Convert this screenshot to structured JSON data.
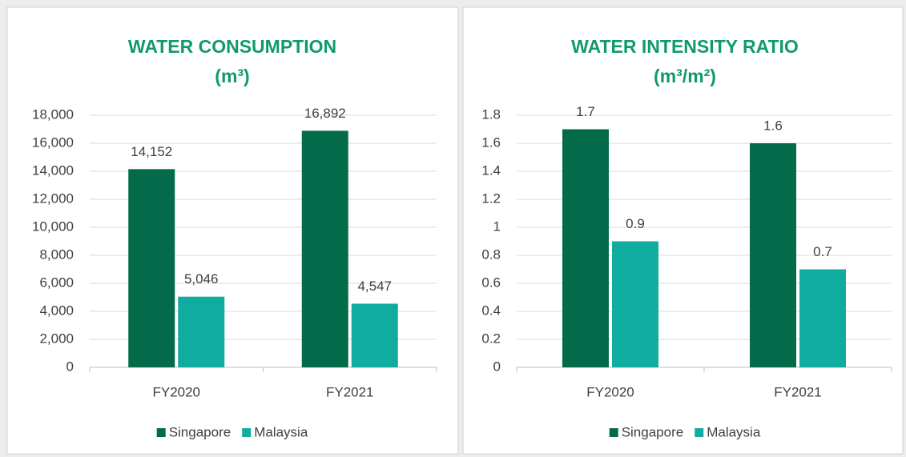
{
  "chart_data": [
    {
      "type": "bar",
      "title": "WATER CONSUMPTION",
      "subtitle": "(m³)",
      "categories": [
        "FY2020",
        "FY2021"
      ],
      "series": [
        {
          "name": "Singapore",
          "color": "#046b4a",
          "values": [
            14152,
            16892
          ],
          "value_labels": [
            "14,152",
            "16,892"
          ]
        },
        {
          "name": "Malaysia",
          "color": "#10aca0",
          "values": [
            5046,
            4547
          ],
          "value_labels": [
            "5,046",
            "4,547"
          ]
        }
      ],
      "ylim": [
        0,
        18000
      ],
      "yticks": [
        0,
        {
          "value": 2000,
          "label": "2,000"
        },
        {
          "value": 4000,
          "label": "4,000"
        },
        {
          "value": 6000,
          "label": "6,000"
        },
        {
          "value": 8000,
          "label": "8,000"
        },
        {
          "value": 10000,
          "label": "10,000"
        },
        {
          "value": 12000,
          "label": "12,000"
        },
        {
          "value": 14000,
          "label": "14,000"
        },
        {
          "value": 16000,
          "label": "16,000"
        },
        {
          "value": 18000,
          "label": "18,000"
        }
      ],
      "grid": true,
      "legend": "bottom"
    },
    {
      "type": "bar",
      "title": "WATER INTENSITY RATIO",
      "subtitle": "(m³/m²)",
      "categories": [
        "FY2020",
        "FY2021"
      ],
      "series": [
        {
          "name": "Singapore",
          "color": "#046b4a",
          "values": [
            1.7,
            1.6
          ]
        },
        {
          "name": "Malaysia",
          "color": "#10aca0",
          "values": [
            0.9,
            0.7
          ]
        }
      ],
      "ylim": [
        0,
        1.8
      ],
      "yticks": [
        0,
        0.2,
        0.4,
        0.6,
        0.8,
        1,
        1.2,
        1.4,
        1.6,
        1.8
      ],
      "grid": true,
      "legend": "bottom"
    }
  ]
}
